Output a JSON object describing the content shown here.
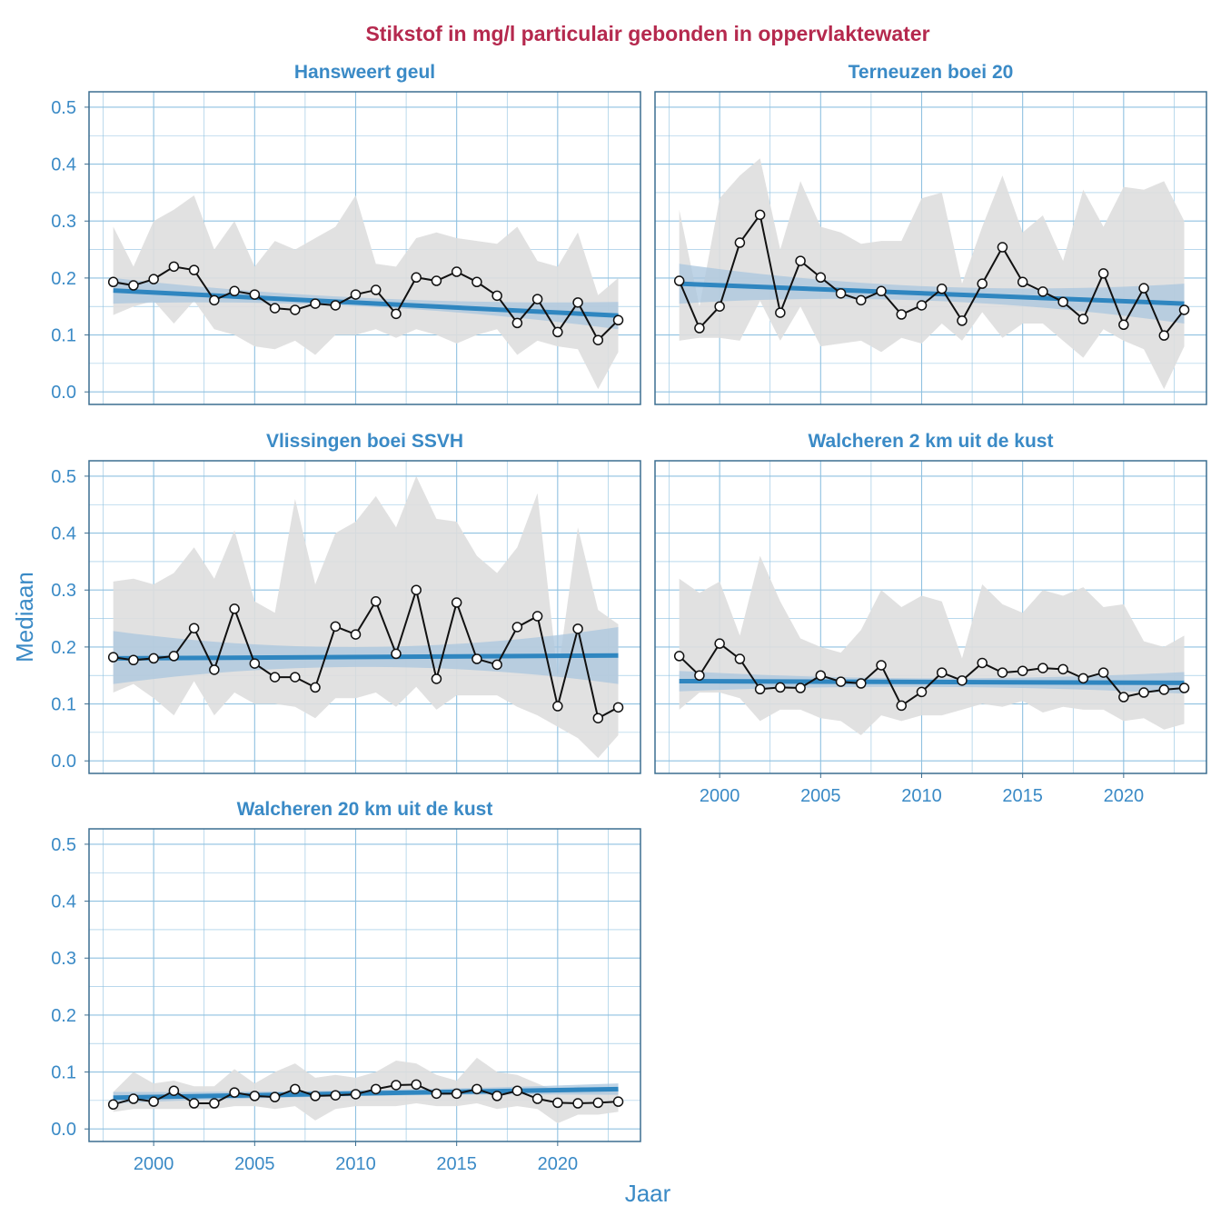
{
  "chart_data": {
    "type": "line",
    "title": "Stikstof in mg/l particulair gebonden in oppervlaktewater",
    "xlabel": "Jaar",
    "ylabel": "Mediaan",
    "xlim": [
      1996.8,
      2024.1
    ],
    "ylim": [
      -0.022,
      0.527
    ],
    "x_ticks": [
      "2000",
      "2005",
      "2010",
      "2015",
      "2020"
    ],
    "y_ticks": [
      "0.0",
      "0.1",
      "0.2",
      "0.3",
      "0.4",
      "0.5"
    ],
    "grid": true,
    "colors": {
      "title": "#b5294e",
      "accent": "#3a8ac6",
      "trend": "#2f86c0",
      "trend_ci": "#a9c6dd",
      "range": "#dedede",
      "line": "#111111",
      "grid": "#8fc1e0",
      "frame": "#3c6e91"
    },
    "x": [
      1998,
      1999,
      2000,
      2001,
      2002,
      2003,
      2004,
      2005,
      2006,
      2007,
      2008,
      2009,
      2010,
      2011,
      2012,
      2013,
      2014,
      2015,
      2016,
      2017,
      2018,
      2019,
      2020,
      2021,
      2022,
      2023
    ],
    "panels": [
      {
        "name": "Hansweert geul",
        "median": [
          0.193,
          0.187,
          0.198,
          0.22,
          0.214,
          0.161,
          0.177,
          0.171,
          0.147,
          0.144,
          0.155,
          0.152,
          0.171,
          0.179,
          0.137,
          0.201,
          0.195,
          0.211,
          0.193,
          0.169,
          0.121,
          0.163,
          0.105,
          0.157,
          0.091,
          0.126
        ],
        "upper": [
          0.29,
          0.22,
          0.3,
          0.32,
          0.345,
          0.25,
          0.3,
          0.22,
          0.265,
          0.25,
          0.27,
          0.29,
          0.345,
          0.225,
          0.22,
          0.27,
          0.28,
          0.27,
          0.265,
          0.26,
          0.29,
          0.23,
          0.22,
          0.28,
          0.17,
          0.2
        ],
        "lower": [
          0.135,
          0.15,
          0.16,
          0.12,
          0.16,
          0.11,
          0.1,
          0.08,
          0.075,
          0.09,
          0.065,
          0.1,
          0.1,
          0.11,
          0.095,
          0.11,
          0.1,
          0.085,
          0.1,
          0.11,
          0.065,
          0.09,
          0.08,
          0.075,
          0.005,
          0.07
        ],
        "trend": [
          0.178,
          0.134
        ],
        "trend_ci_lower": [
          0.155,
          0.15,
          0.11
        ],
        "trend_ci_upper": [
          0.2,
          0.165,
          0.158
        ]
      },
      {
        "name": "Terneuzen boei 20",
        "median": [
          0.195,
          0.112,
          0.15,
          0.262,
          0.311,
          0.139,
          0.23,
          0.201,
          0.173,
          0.161,
          0.177,
          0.136,
          0.152,
          0.181,
          0.125,
          0.19,
          0.254,
          0.193,
          0.176,
          0.158,
          0.128,
          0.208,
          0.118,
          0.182,
          0.099,
          0.144
        ],
        "upper": [
          0.32,
          0.15,
          0.34,
          0.38,
          0.41,
          0.25,
          0.37,
          0.29,
          0.28,
          0.26,
          0.265,
          0.265,
          0.34,
          0.35,
          0.19,
          0.29,
          0.38,
          0.28,
          0.31,
          0.23,
          0.355,
          0.29,
          0.36,
          0.355,
          0.37,
          0.3
        ],
        "lower": [
          0.09,
          0.095,
          0.095,
          0.09,
          0.16,
          0.09,
          0.15,
          0.08,
          0.085,
          0.09,
          0.07,
          0.095,
          0.085,
          0.12,
          0.09,
          0.14,
          0.095,
          0.12,
          0.12,
          0.09,
          0.06,
          0.11,
          0.09,
          0.075,
          0.005,
          0.08
        ],
        "trend": [
          0.19,
          0.155
        ],
        "trend_ci_lower": [
          0.155,
          0.16,
          0.12
        ],
        "trend_ci_upper": [
          0.225,
          0.185,
          0.19
        ]
      },
      {
        "name": "Vlissingen boei SSVH",
        "median": [
          0.182,
          0.177,
          0.18,
          0.184,
          0.233,
          0.16,
          0.267,
          0.171,
          0.147,
          0.147,
          0.129,
          0.236,
          0.222,
          0.28,
          0.188,
          0.3,
          0.144,
          0.278,
          0.179,
          0.169,
          0.235,
          0.254,
          0.096,
          0.232,
          0.075,
          0.094
        ],
        "upper": [
          0.315,
          0.32,
          0.31,
          0.33,
          0.375,
          0.32,
          0.405,
          0.28,
          0.26,
          0.46,
          0.31,
          0.4,
          0.42,
          0.465,
          0.41,
          0.5,
          0.425,
          0.42,
          0.36,
          0.33,
          0.375,
          0.47,
          0.15,
          0.41,
          0.265,
          0.24
        ],
        "lower": [
          0.12,
          0.135,
          0.11,
          0.08,
          0.14,
          0.08,
          0.12,
          0.1,
          0.1,
          0.095,
          0.075,
          0.11,
          0.11,
          0.12,
          0.095,
          0.13,
          0.09,
          0.115,
          0.115,
          0.115,
          0.095,
          0.08,
          0.06,
          0.04,
          0.005,
          0.045
        ],
        "trend": [
          0.18,
          0.185
        ],
        "trend_ci_lower": [
          0.135,
          0.165,
          0.135
        ],
        "trend_ci_upper": [
          0.228,
          0.2,
          0.235
        ]
      },
      {
        "name": "Walcheren 2 km uit de kust",
        "median": [
          0.184,
          0.15,
          0.206,
          0.179,
          0.126,
          0.129,
          0.128,
          0.15,
          0.139,
          0.136,
          0.168,
          0.097,
          0.121,
          0.155,
          0.141,
          0.172,
          0.155,
          0.158,
          0.163,
          0.161,
          0.145,
          0.155,
          0.112,
          0.12,
          0.125,
          0.128
        ],
        "upper": [
          0.32,
          0.295,
          0.315,
          0.22,
          0.36,
          0.28,
          0.215,
          0.2,
          0.19,
          0.23,
          0.3,
          0.27,
          0.29,
          0.28,
          0.18,
          0.31,
          0.275,
          0.26,
          0.3,
          0.29,
          0.305,
          0.27,
          0.275,
          0.21,
          0.2,
          0.22
        ],
        "lower": [
          0.09,
          0.12,
          0.12,
          0.11,
          0.07,
          0.09,
          0.09,
          0.075,
          0.07,
          0.045,
          0.08,
          0.07,
          0.08,
          0.08,
          0.09,
          0.1,
          0.095,
          0.105,
          0.085,
          0.095,
          0.09,
          0.09,
          0.07,
          0.075,
          0.055,
          0.065
        ],
        "trend": [
          0.14,
          0.137
        ],
        "trend_ci_lower": [
          0.122,
          0.13,
          0.118
        ],
        "trend_ci_upper": [
          0.158,
          0.145,
          0.156
        ]
      },
      {
        "name": "Walcheren 20 km uit de kust",
        "median": [
          0.043,
          0.053,
          0.048,
          0.067,
          0.045,
          0.045,
          0.064,
          0.058,
          0.056,
          0.07,
          0.058,
          0.059,
          0.061,
          0.07,
          0.077,
          0.078,
          0.062,
          0.062,
          0.07,
          0.058,
          0.067,
          0.053,
          0.046,
          0.045,
          0.046,
          0.048
        ],
        "upper": [
          0.065,
          0.1,
          0.08,
          0.085,
          0.075,
          0.075,
          0.105,
          0.08,
          0.1,
          0.115,
          0.09,
          0.095,
          0.09,
          0.1,
          0.12,
          0.115,
          0.095,
          0.085,
          0.125,
          0.1,
          0.095,
          0.08,
          0.065,
          0.075,
          0.07,
          0.07
        ],
        "lower": [
          0.03,
          0.035,
          0.035,
          0.035,
          0.035,
          0.035,
          0.04,
          0.04,
          0.035,
          0.04,
          0.015,
          0.035,
          0.04,
          0.04,
          0.04,
          0.045,
          0.04,
          0.04,
          0.045,
          0.035,
          0.04,
          0.035,
          0.01,
          0.025,
          0.025,
          0.03
        ],
        "trend": [
          0.055,
          0.07
        ],
        "trend_ci_lower": [
          0.045,
          0.058,
          0.06
        ],
        "trend_ci_upper": [
          0.065,
          0.068,
          0.08
        ]
      }
    ]
  }
}
